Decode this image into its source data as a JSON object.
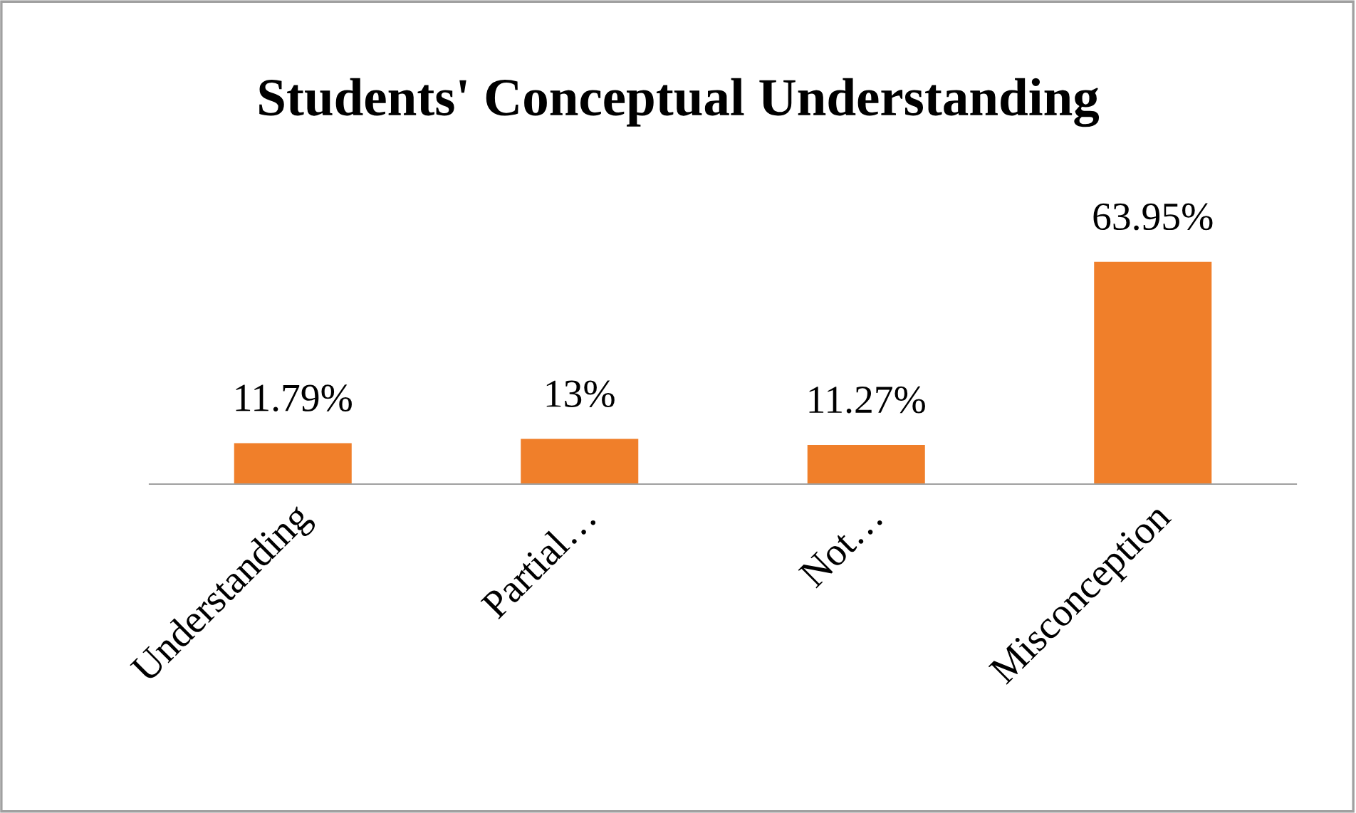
{
  "chart_data": {
    "type": "bar",
    "title": "Students' Conceptual Understanding",
    "categories": [
      "Understanding",
      "Partial…",
      "Not…",
      "Misconception"
    ],
    "values": [
      11.79,
      13,
      11.27,
      63.95
    ],
    "value_labels": [
      "11.79%",
      "13%",
      "11.27%",
      "63.95%"
    ],
    "color": "#f07f2a",
    "grid": false,
    "legend": false
  }
}
